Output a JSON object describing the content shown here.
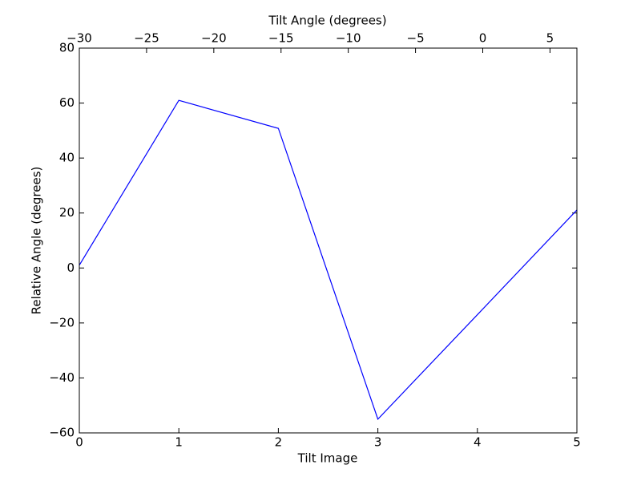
{
  "chart_data": {
    "type": "line",
    "xlabel": "Tilt Image",
    "ylabel": "Relative Angle (degrees)",
    "x2label": "Tilt Angle (degrees)",
    "x": [
      0,
      1,
      2,
      3,
      4,
      5
    ],
    "series": [
      {
        "color": "#0000ff",
        "values": [
          1,
          61,
          50.8,
          -55,
          -17,
          21.1
        ]
      }
    ],
    "xlim": [
      0,
      5
    ],
    "xticks": [
      0,
      1,
      2,
      3,
      4,
      5
    ],
    "ylim": [
      -60,
      80
    ],
    "yticks": [
      {
        "value": -60,
        "label": "−60"
      },
      {
        "value": -40,
        "label": "−40"
      },
      {
        "value": -20,
        "label": "−20"
      },
      0,
      20,
      40,
      60,
      80
    ],
    "x2lim": [
      -30,
      7
    ],
    "x2ticks": [
      {
        "value": -30,
        "label": "−30"
      },
      {
        "value": -25,
        "label": "−25"
      },
      {
        "value": -20,
        "label": "−20"
      },
      {
        "value": -15,
        "label": "−15"
      },
      {
        "value": -10,
        "label": "−10"
      },
      {
        "value": -5,
        "label": "−5"
      },
      0,
      5
    ],
    "grid": false
  }
}
